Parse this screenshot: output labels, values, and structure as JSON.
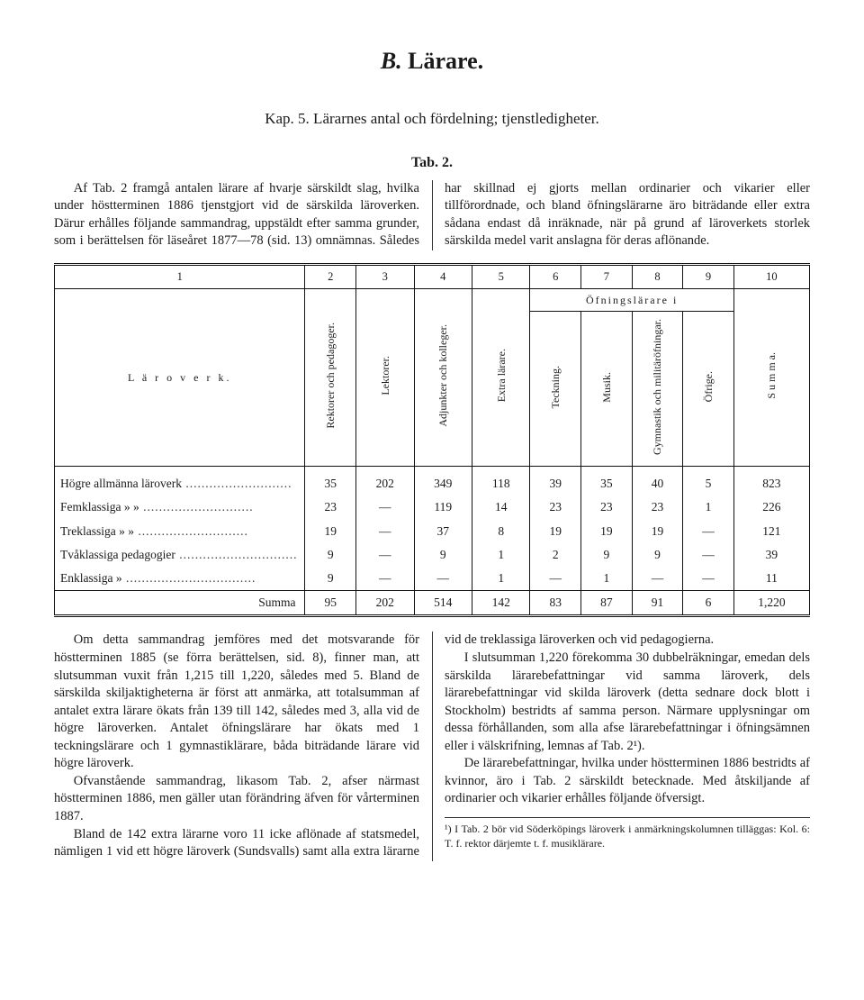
{
  "heading": {
    "prefix_italic": "B.",
    "text": " Lärare."
  },
  "subtitle": "Kap. 5. Lärarnes antal och fördelning; tjenstledigheter.",
  "tab_label": "Tab. 2.",
  "intro_para": "Af Tab. 2 framgå antalen lärare af hvarje särskildt slag, hvilka under höstterminen 1886 tjenstgjort vid de särskilda läroverken. Därur erhålles följande sammandrag, uppstäldt efter samma grunder, som i berättelsen för läseåret 1877—78 (sid. 13) omnämnas. Således har skillnad ej gjorts mellan ordinarier och vikarier eller tillförordnade, och bland öfningslärarne äro biträdande eller extra sådana endast då inräknade, när på grund af läroverkets storlek särskilda medel varit anslagna för deras aflönande.",
  "table": {
    "col_numbers": [
      "1",
      "2",
      "3",
      "4",
      "5",
      "6",
      "7",
      "8",
      "9",
      "10"
    ],
    "row_header_label": "L ä r o v e r k.",
    "group_header": "Öfningslärare i",
    "columns": {
      "c2": "Rektorer och pedagoger.",
      "c3": "Lektorer.",
      "c4": "Adjunkter och kolleger.",
      "c5": "Extra lärare.",
      "c6": "Teckning.",
      "c7": "Musik.",
      "c8": "Gymnastik och militäröfningar.",
      "c9": "Öfrige.",
      "c10": "S u m m a."
    },
    "rows": [
      {
        "label": "Högre   allmänna läroverk",
        "v": [
          "35",
          "202",
          "349",
          "118",
          "39",
          "35",
          "40",
          "5",
          "823"
        ]
      },
      {
        "label": "Femklassiga   »        »",
        "v": [
          "23",
          "—",
          "119",
          "14",
          "23",
          "23",
          "23",
          "1",
          "226"
        ]
      },
      {
        "label": "Treklassiga   »        »",
        "v": [
          "19",
          "—",
          "37",
          "8",
          "19",
          "19",
          "19",
          "—",
          "121"
        ]
      },
      {
        "label": "Tvåklassiga pedagogier",
        "v": [
          "9",
          "—",
          "9",
          "1",
          "2",
          "9",
          "9",
          "—",
          "39"
        ]
      },
      {
        "label": "Enklassiga        »",
        "v": [
          "9",
          "—",
          "—",
          "1",
          "—",
          "1",
          "—",
          "—",
          "11"
        ]
      }
    ],
    "sum": {
      "label": "Summa",
      "v": [
        "95",
        "202",
        "514",
        "142",
        "83",
        "87",
        "91",
        "6",
        "1,220"
      ]
    }
  },
  "body_paragraphs": [
    "Om detta sammandrag jemföres med det motsvarande för höstterminen 1885 (se förra berättelsen, sid. 8), finner man, att slutsumman vuxit från 1,215 till 1,220, således med 5. Bland de särskilda skiljaktigheterna är först att anmärka, att totalsumman af antalet extra lärare ökats från 139 till 142, således med 3, alla vid de högre läroverken. Antalet öfningslärare har ökats med 1 teckningslärare och 1 gymnastiklärare, båda biträdande lärare vid högre läroverk.",
    "Ofvanstående sammandrag, likasom Tab. 2, afser närmast höstterminen 1886, men gäller utan förändring äfven för vårterminen 1887.",
    "Bland de 142 extra lärarne voro 11 icke aflönade af statsmedel, nämligen 1 vid ett högre läroverk (Sundsvalls) samt alla extra lärarne vid de treklassiga läroverken och vid pedagogierna.",
    "I slutsumman 1,220 förekomma 30 dubbelräkningar, emedan dels särskilda lärarebefattningar vid samma läroverk, dels lärarebefattningar vid skilda läroverk (detta sednare dock blott i Stockholm) bestridts af samma person. Närmare upplysningar om dessa förhållanden, som alla afse lärarebefattningar i öfningsämnen eller i välskrifning, lemnas af Tab. 2¹).",
    "De lärarebefattningar, hvilka under höstterminen 1886 bestridts af kvinnor, äro i Tab. 2 särskildt betecknade. Med åtskiljande af ordinarier och vikarier erhålles följande öfversigt."
  ],
  "footnote": "¹) I Tab. 2 bör vid Söderköpings läroverk i anmärkningskolumnen tilläggas: Kol. 6: T. f. rektor därjemte t. f. musiklärare."
}
